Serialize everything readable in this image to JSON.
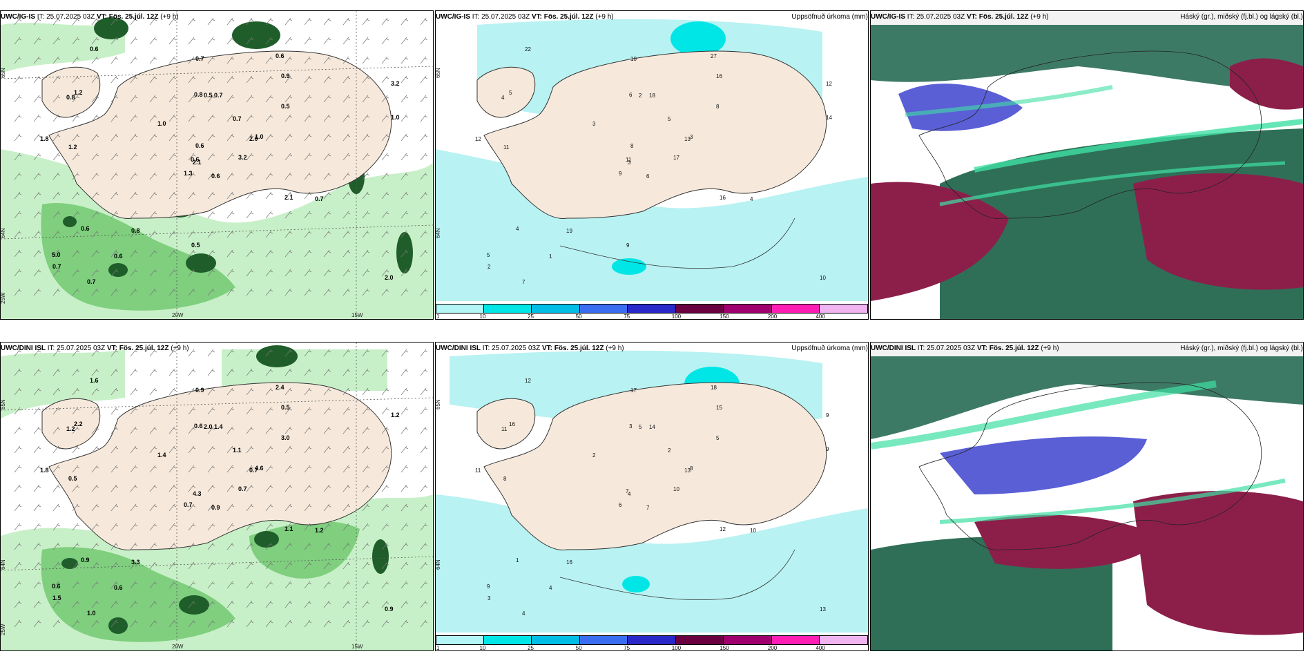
{
  "rows": [
    {
      "model": "UWC/IG-IS",
      "it_label": "IT:",
      "it_value": "25.07.2025 03Z",
      "vt_label": "VT:",
      "vt_value": "Fös. 25.júl. 12Z",
      "lead": "(+9 h)",
      "precip_title": "Uppsöfnuð úrkoma (mm)",
      "cloud_title": "Háský (gr.), miðský (fj.bl.) og lágský (bl.)",
      "lat_labels": [
        "65N",
        "64N"
      ],
      "lon_labels": [
        "25W",
        "20W",
        "15W"
      ],
      "precip_rate_labels": [
        "0.6",
        "0.8",
        "2.1",
        "5.0",
        "2.0",
        "0.8",
        "0.6",
        "0.7",
        "0.9",
        "3.2",
        "0.6",
        "2.0",
        "1.2",
        "3.2",
        "1.3",
        "0.5",
        "0.7",
        "0.8",
        "0.7",
        "0.6",
        "1.0",
        "0.7",
        "0.6",
        "0.5",
        "1.0",
        "0.7",
        "1.2",
        "0.7",
        "1.8",
        "2.1",
        "1.0",
        "0.6",
        "0.5",
        "0.6"
      ],
      "precip_accum_labels": [
        "6",
        "4",
        "3",
        "5",
        "13",
        "19",
        "27",
        "18",
        "16",
        "17",
        "22",
        "10",
        "11",
        "12",
        "9",
        "8",
        "7",
        "6",
        "5",
        "4",
        "3",
        "2",
        "1",
        "2",
        "3",
        "4",
        "5",
        "10",
        "12",
        "16",
        "14",
        "11",
        "9",
        "8"
      ]
    },
    {
      "model": "UWC/DINI ISL",
      "it_label": "IT:",
      "it_value": "25.07.2025 03Z",
      "vt_label": "VT:",
      "vt_value": "Fös. 25.júl. 12Z",
      "lead": "(+9 h)",
      "precip_title": "Uppsöfnuð úrkoma (mm)",
      "cloud_title": "Háský (gr.), miðský (fj.bl.) og lágský (bl.)",
      "lat_labels": [
        "65N",
        "64N"
      ],
      "lon_labels": [
        "25W",
        "20W",
        "15W"
      ],
      "precip_rate_labels": [
        "0.9",
        "1.2",
        "4.3",
        "0.6",
        "0.7",
        "3.3",
        "2.4",
        "1.4",
        "0.5",
        "0.7",
        "1.6",
        "0.9",
        "0.5",
        "1.2",
        "0.7",
        "3.0",
        "1.0",
        "0.6",
        "1.1",
        "0.9",
        "1.4",
        "1.5",
        "0.6",
        "2.0",
        "4.6",
        "1.2",
        "2.2",
        "0.9",
        "1.8",
        "1.1"
      ],
      "precip_accum_labels": [
        "7",
        "11",
        "4",
        "9",
        "13",
        "16",
        "18",
        "14",
        "15",
        "10",
        "12",
        "13",
        "8",
        "9",
        "6",
        "5",
        "4",
        "3",
        "2",
        "1",
        "2",
        "3",
        "4",
        "5",
        "8",
        "10",
        "16",
        "17",
        "11",
        "12",
        "9",
        "7"
      ]
    }
  ],
  "colorbar": {
    "labels": [
      "1",
      "10",
      "25",
      "50",
      "75",
      "100",
      "150",
      "200",
      "400"
    ],
    "colors": [
      "#b4f5f5",
      "#00e6e6",
      "#00bde6",
      "#3a6df0",
      "#2a28c8",
      "#6b0040",
      "#a0006e",
      "#ff1eb4",
      "#f0b4f0"
    ]
  },
  "palette": {
    "land": "#f6e9dc",
    "precip_light": "#c8f0c8",
    "precip_mid": "#7fcf7f",
    "precip_dark": "#1f5e2a",
    "accum_light": "#b8f2f2",
    "cloud_high": "#2f6f58",
    "cloud_mid": "#8c1f4a",
    "cloud_low": "#5a5fd6",
    "cloud_green": "#3fe0a4"
  }
}
